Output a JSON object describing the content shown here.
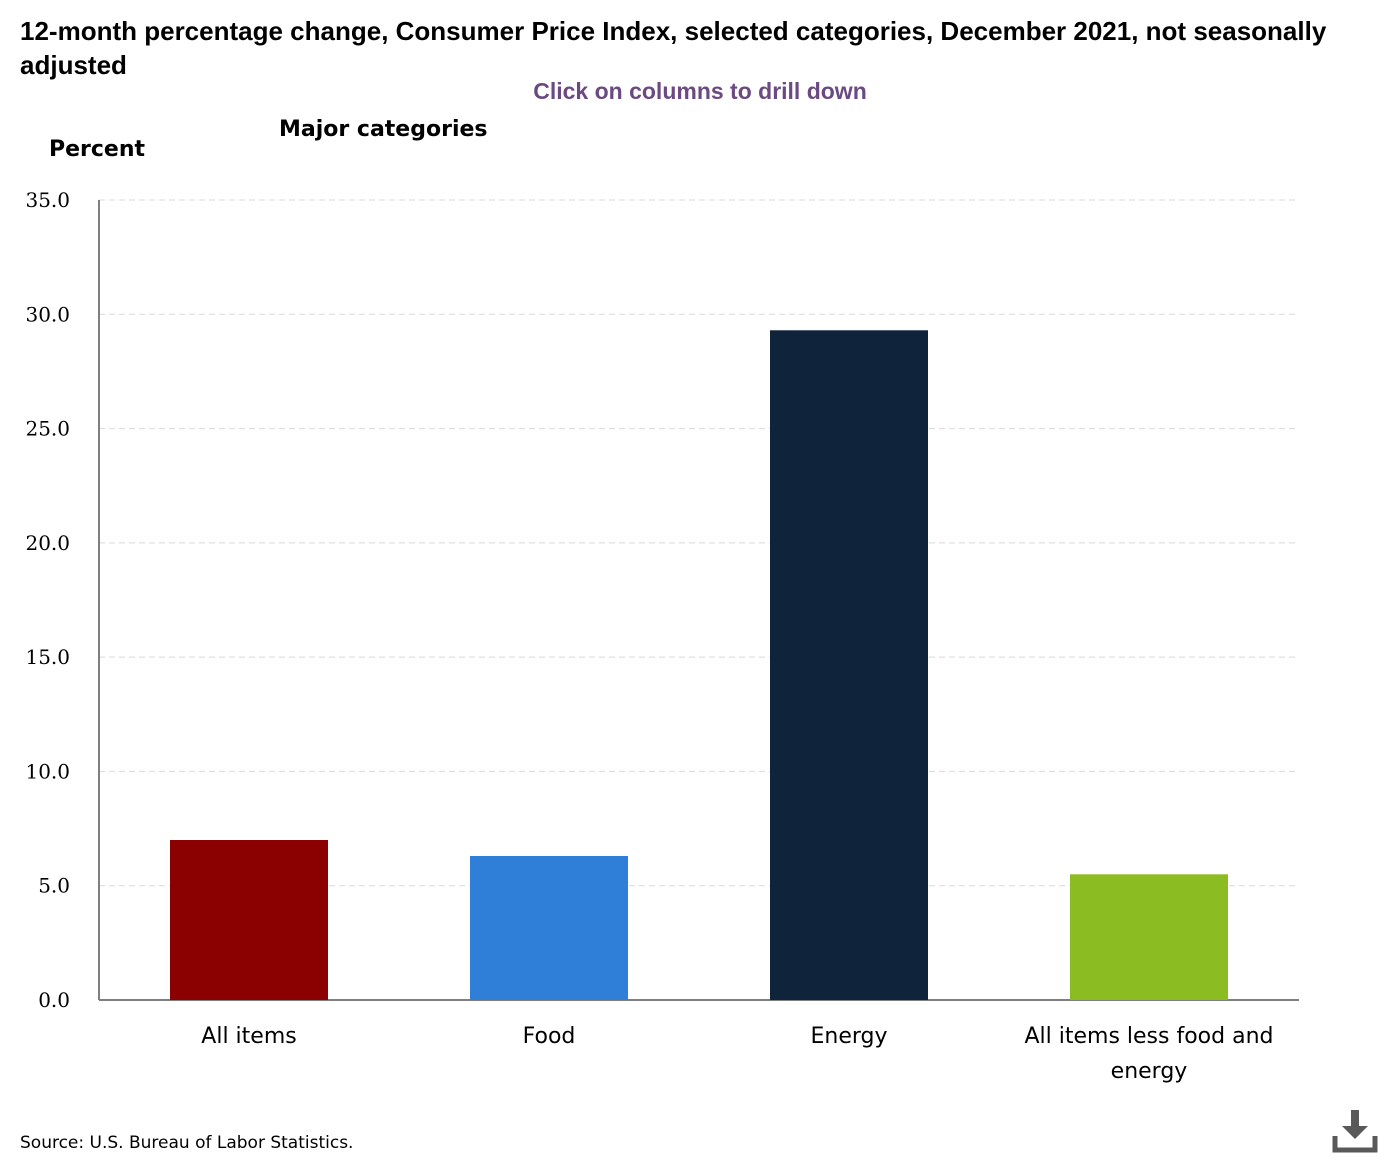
{
  "header": {
    "title": "12-month percentage change, Consumer Price Index, selected categories, December 2021, not seasonally adjusted",
    "drill_hint": "Click on columns to drill down",
    "subtitle": "Major categories"
  },
  "footer": {
    "source": "Source: U.S. Bureau of Labor Statistics.",
    "download_icon": "download-icon"
  },
  "colors": {
    "hint": "#6b4a82",
    "grid": "#d9d9d9",
    "axis": "#7f7f7f",
    "icon": "#595959"
  },
  "chart_data": {
    "type": "bar",
    "title": "12-month percentage change, Consumer Price Index, selected categories, December 2021, not seasonally adjusted",
    "subtitle": "Major categories",
    "xlabel": "",
    "ylabel": "Percent",
    "ylim": [
      0,
      35
    ],
    "yticks": [
      0,
      5,
      10,
      15,
      20,
      25,
      30,
      35
    ],
    "ytick_labels": [
      "0.0",
      "5.0",
      "10.0",
      "15.0",
      "20.0",
      "25.0",
      "30.0",
      "35.0"
    ],
    "grid": true,
    "legend": "none",
    "categories": [
      "All items",
      "Food",
      "Energy",
      "All items less food and energy"
    ],
    "category_lines": [
      [
        "All items"
      ],
      [
        "Food"
      ],
      [
        "Energy"
      ],
      [
        "All items less food and",
        "energy"
      ]
    ],
    "values": [
      7.0,
      6.3,
      29.3,
      5.5
    ],
    "bar_colors": [
      "#8b0000",
      "#2f7ed8",
      "#0f233b",
      "#8bbc21"
    ]
  }
}
